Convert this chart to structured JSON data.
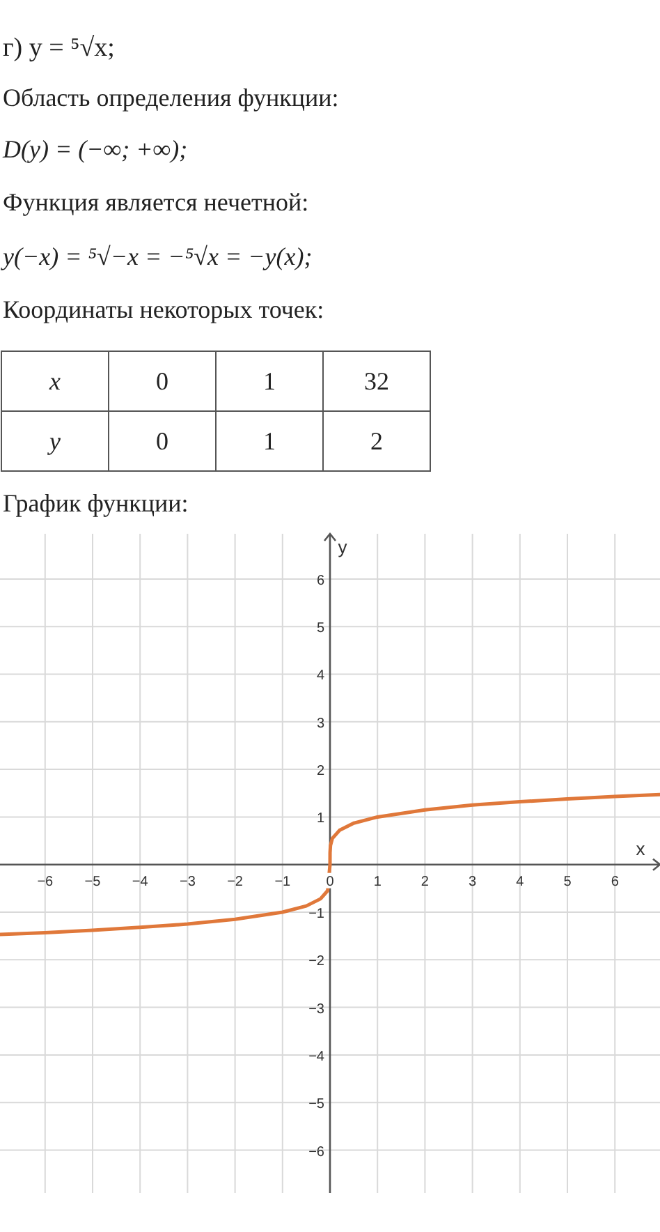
{
  "chart_data": {
    "type": "line",
    "title": "г) y = ⁵√x;",
    "annotations": [
      "Область определения функции:",
      "D(y) = (−∞; +∞);",
      "Функция является нечетной:",
      "y(−x) = ⁵√−x = −⁵√x = −y(x);",
      "Координаты некоторых точек:",
      "x",
      "0",
      "1",
      "32",
      "y",
      "0",
      "1",
      "2",
      "График функции:"
    ],
    "xlabel": "x",
    "ylabel": "y",
    "x": [
      -6.95,
      -6,
      -5,
      -4,
      -3,
      -2,
      -1,
      -0.5,
      -0.2,
      -0.05,
      0,
      0.001,
      0.01,
      0.05,
      0.2,
      0.5,
      1,
      2,
      3,
      4,
      5,
      6,
      6.95
    ],
    "series": [
      {
        "color": "#e0783a",
        "values": [
          -1.47,
          -1.43,
          -1.38,
          -1.32,
          -1.25,
          -1.15,
          -1,
          -0.87,
          -0.72,
          -0.55,
          0,
          0.25,
          0.4,
          0.55,
          0.72,
          0.87,
          1,
          1.15,
          1.25,
          1.32,
          1.38,
          1.43,
          1.47
        ]
      }
    ],
    "xlim": [
      -6.95,
      6.95
    ],
    "ylim": [
      -6.9,
      6.95
    ],
    "xticks": [
      -6,
      -5,
      -4,
      -3,
      -2,
      -1,
      0,
      1,
      2,
      3,
      4,
      5,
      6
    ],
    "yticks": [
      -6,
      -5,
      -4,
      -3,
      -2,
      -1,
      1,
      2,
      3,
      4,
      5,
      6
    ],
    "grid": true,
    "line_style": "solid",
    "marker": "none"
  }
}
